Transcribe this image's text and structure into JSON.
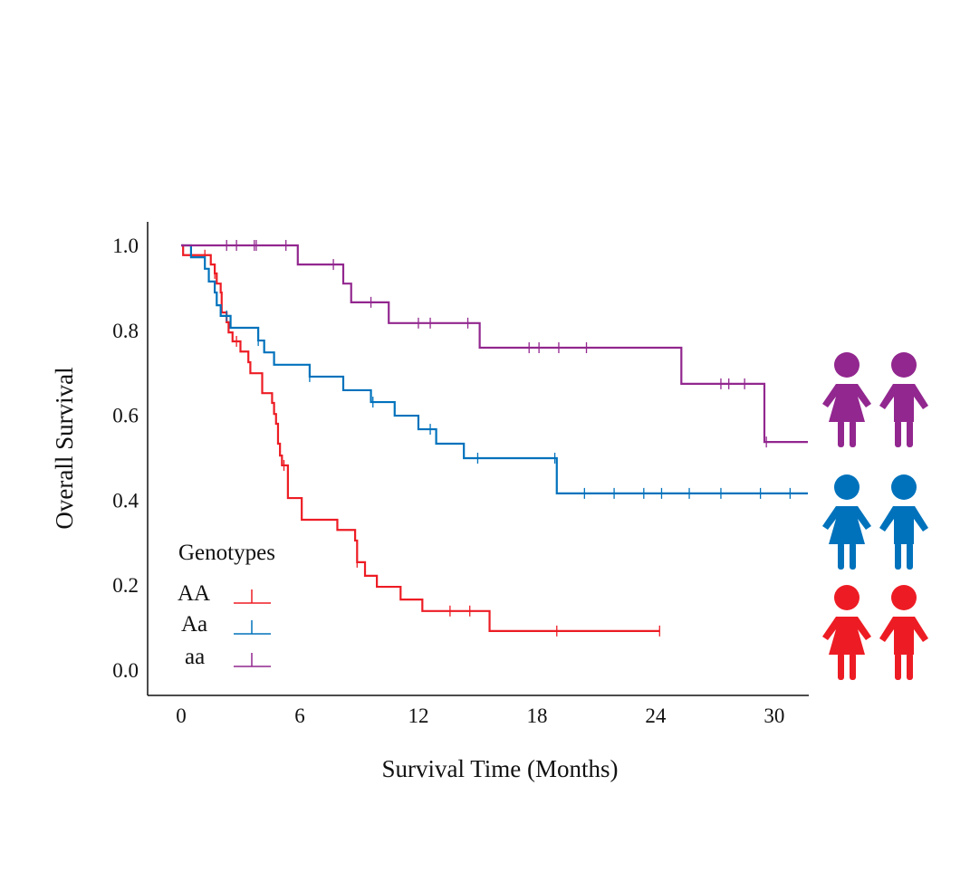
{
  "chart_data": {
    "type": "line",
    "subtype": "kaplan-meier step",
    "title": "",
    "xlabel": "Survival Time (Months)",
    "ylabel": "Overall Survival",
    "xlim": [
      0,
      31.7
    ],
    "ylim": [
      0,
      1.0
    ],
    "xticks": [
      "0",
      "6",
      "12",
      "18",
      "24",
      "30"
    ],
    "yticks": [
      "0.0",
      "0.2",
      "0.4",
      "0.6",
      "0.8",
      "1.0"
    ],
    "grid": false,
    "legend": {
      "title": "Genotypes",
      "position": "bottom-left"
    },
    "series": [
      {
        "name": "AA",
        "color": "#ed1c24",
        "steps": [
          [
            0,
            1.0
          ],
          [
            0.1,
            0.977
          ],
          [
            1.5,
            0.955
          ],
          [
            1.7,
            0.934
          ],
          [
            1.8,
            0.91
          ],
          [
            2.0,
            0.889
          ],
          [
            2.05,
            0.842
          ],
          [
            2.3,
            0.819
          ],
          [
            2.4,
            0.795
          ],
          [
            2.6,
            0.774
          ],
          [
            3.0,
            0.75
          ],
          [
            3.4,
            0.725
          ],
          [
            3.5,
            0.699
          ],
          [
            4.1,
            0.652
          ],
          [
            4.6,
            0.629
          ],
          [
            4.7,
            0.603
          ],
          [
            4.8,
            0.58
          ],
          [
            4.9,
            0.533
          ],
          [
            5.0,
            0.505
          ],
          [
            5.1,
            0.482
          ],
          [
            5.4,
            0.405
          ],
          [
            6.1,
            0.354
          ],
          [
            7.9,
            0.33
          ],
          [
            8.8,
            0.305
          ],
          [
            8.9,
            0.254
          ],
          [
            9.3,
            0.222
          ],
          [
            9.9,
            0.196
          ],
          [
            11.1,
            0.166
          ],
          [
            12.2,
            0.139
          ],
          [
            15.6,
            0.092
          ]
        ],
        "end": 24.2,
        "censored": [
          1.2,
          1.7,
          2.8,
          5.2,
          8.9,
          13.6,
          14.6,
          19.0,
          24.2
        ]
      },
      {
        "name": "Aa",
        "color": "#0072bc",
        "steps": [
          [
            0,
            1.0
          ],
          [
            0.5,
            0.972
          ],
          [
            1.2,
            0.945
          ],
          [
            1.4,
            0.915
          ],
          [
            1.7,
            0.889
          ],
          [
            1.8,
            0.859
          ],
          [
            2.0,
            0.834
          ],
          [
            2.5,
            0.806
          ],
          [
            3.9,
            0.776
          ],
          [
            4.2,
            0.748
          ],
          [
            4.7,
            0.719
          ],
          [
            6.5,
            0.691
          ],
          [
            8.2,
            0.659
          ],
          [
            9.6,
            0.631
          ],
          [
            10.8,
            0.599
          ],
          [
            12.0,
            0.567
          ],
          [
            12.9,
            0.533
          ],
          [
            14.3,
            0.499
          ],
          [
            19.0,
            0.416
          ]
        ],
        "end": 31.7,
        "censored": [
          2.3,
          3.9,
          6.5,
          9.7,
          12.6,
          15.0,
          18.9,
          20.4,
          21.9,
          23.4,
          24.3,
          25.7,
          27.3,
          29.3,
          30.8
        ]
      },
      {
        "name": "aa",
        "color": "#92278f",
        "steps": [
          [
            0,
            1.0
          ],
          [
            5.9,
            0.955
          ],
          [
            8.2,
            0.91
          ],
          [
            8.6,
            0.866
          ],
          [
            10.5,
            0.817
          ],
          [
            15.1,
            0.759
          ],
          [
            25.3,
            0.674
          ],
          [
            29.5,
            0.537
          ]
        ],
        "end": 31.7,
        "censored": [
          2.3,
          2.8,
          3.7,
          3.8,
          5.3,
          7.7,
          9.6,
          12.0,
          12.6,
          14.5,
          17.6,
          18.1,
          19.1,
          20.5,
          27.3,
          27.7,
          28.5,
          29.6
        ]
      }
    ]
  },
  "icons": [
    {
      "group": "aa",
      "color": "#92278f",
      "figures": [
        "girl-icon",
        "boy-icon"
      ]
    },
    {
      "group": "Aa",
      "color": "#0072bc",
      "figures": [
        "girl-icon",
        "boy-icon"
      ]
    },
    {
      "group": "AA",
      "color": "#ed1c24",
      "figures": [
        "girl-icon",
        "boy-icon"
      ]
    }
  ]
}
